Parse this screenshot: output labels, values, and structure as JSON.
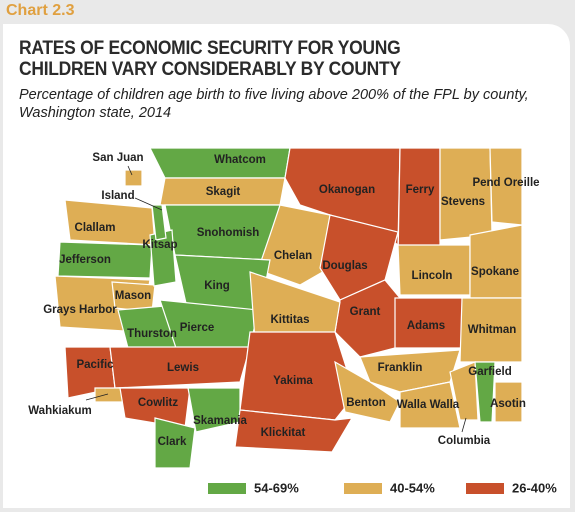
{
  "chart_label": "Chart 2.3",
  "title": "RATES OF ECONOMIC SECURITY FOR YOUNG CHILDREN VARY CONSIDERABLY BY COUNTY",
  "subtitle": "Percentage of children age birth to five living above 200% of the FPL by county, Washington state, 2014",
  "legend": [
    {
      "label": "54-69%",
      "color": "#63a845"
    },
    {
      "label": "40-54%",
      "color": "#deae55"
    },
    {
      "label": "26-40%",
      "color": "#c8502b"
    }
  ],
  "counties": [
    {
      "name": "Whatcom",
      "legend": 0
    },
    {
      "name": "San Juan",
      "legend": 1
    },
    {
      "name": "Skagit",
      "legend": 1
    },
    {
      "name": "Okanogan",
      "legend": 2
    },
    {
      "name": "Ferry",
      "legend": 2
    },
    {
      "name": "Stevens",
      "legend": 1
    },
    {
      "name": "Pend Oreille",
      "legend": 1
    },
    {
      "name": "Clallam",
      "legend": 1
    },
    {
      "name": "Jefferson",
      "legend": 0
    },
    {
      "name": "Snohomish",
      "legend": 0
    },
    {
      "name": "Chelan",
      "legend": 1
    },
    {
      "name": "Douglas",
      "legend": 2
    },
    {
      "name": "Lincoln",
      "legend": 1
    },
    {
      "name": "Spokane",
      "legend": 1
    },
    {
      "name": "Grays Harbor",
      "legend": 1
    },
    {
      "name": "Mason",
      "legend": 1
    },
    {
      "name": "Kitsap",
      "legend": 0
    },
    {
      "name": "King",
      "legend": 0
    },
    {
      "name": "Grant",
      "legend": 2
    },
    {
      "name": "Adams",
      "legend": 2
    },
    {
      "name": "Whitman",
      "legend": 1
    },
    {
      "name": "Thurston",
      "legend": 0
    },
    {
      "name": "Pierce",
      "legend": 0
    },
    {
      "name": "Kittitas",
      "legend": 1
    },
    {
      "name": "Pacific",
      "legend": 2
    },
    {
      "name": "Lewis",
      "legend": 2
    },
    {
      "name": "Yakima",
      "legend": 2
    },
    {
      "name": "Franklin",
      "legend": 1
    },
    {
      "name": "Columbia",
      "legend": 1
    },
    {
      "name": "Garfield",
      "legend": 0
    },
    {
      "name": "Wahkiakum",
      "legend": 1
    },
    {
      "name": "Cowlitz",
      "legend": 2
    },
    {
      "name": "Skamania",
      "legend": 0
    },
    {
      "name": "Benton",
      "legend": 1
    },
    {
      "name": "Walla Walla",
      "legend": 1
    },
    {
      "name": "Asotin",
      "legend": 1
    },
    {
      "name": "Clark",
      "legend": 0
    },
    {
      "name": "Klickitat",
      "legend": 2
    },
    {
      "name": "Island",
      "legend": 0
    }
  ]
}
